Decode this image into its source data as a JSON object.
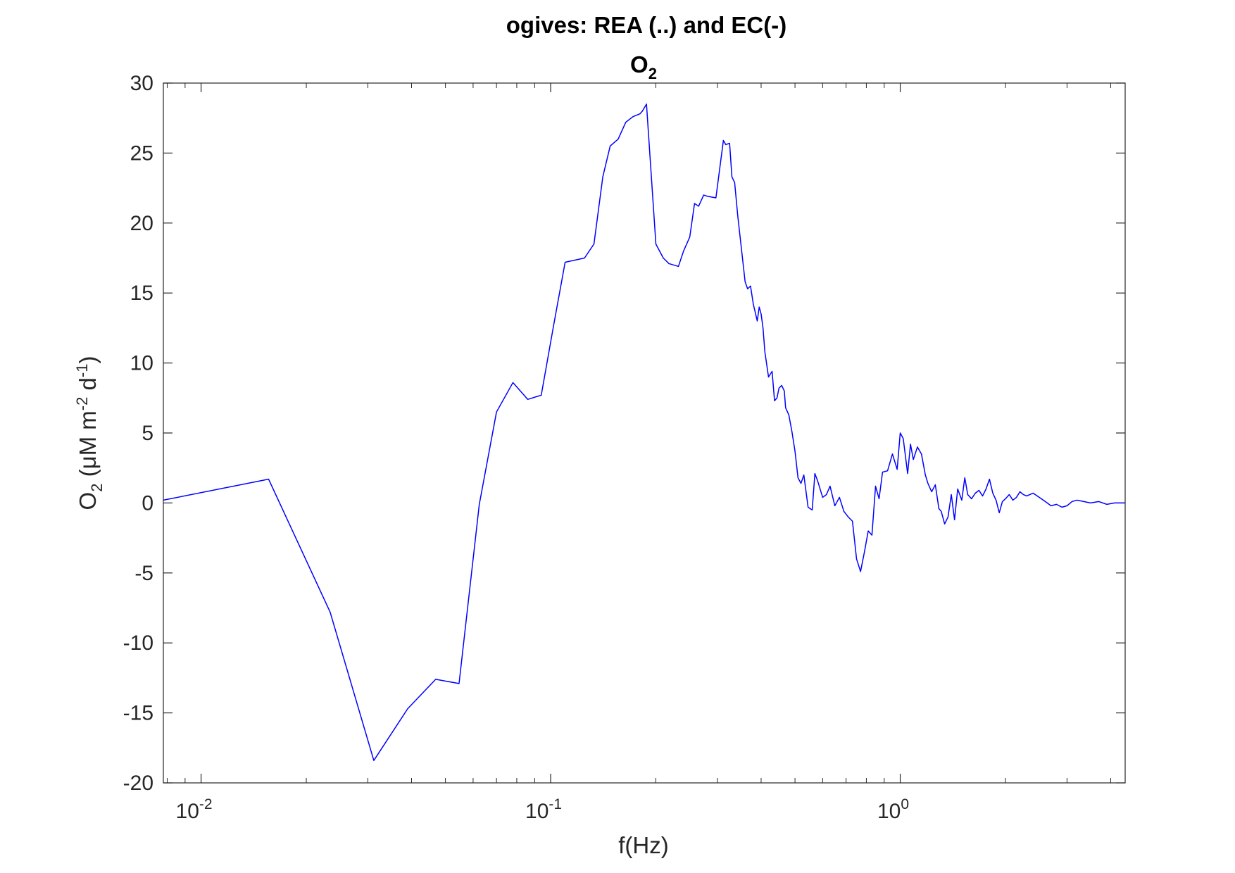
{
  "chart_data": {
    "type": "line",
    "title": "ogives: REA (..) and EC(-)",
    "subtitle": {
      "base": "O",
      "sub": "2"
    },
    "xlabel": "f(Hz)",
    "ylabel": {
      "base": "O",
      "base_sub": "2",
      "text1": " (μM m",
      "sup1": "-2",
      "text2": " d",
      "sup2": "-1",
      "text3": ")"
    },
    "xscale": "log",
    "xlim": [
      0.0078,
      4.4
    ],
    "ylim": [
      -20,
      30
    ],
    "xticks": [
      {
        "value": 0.01,
        "base": "10",
        "exp": "-2"
      },
      {
        "value": 0.1,
        "base": "10",
        "exp": "-1"
      },
      {
        "value": 1,
        "base": "10",
        "exp": "0"
      }
    ],
    "yticks": [
      {
        "value": 30,
        "label": "30"
      },
      {
        "value": 25,
        "label": "25"
      },
      {
        "value": 20,
        "label": "20"
      },
      {
        "value": 15,
        "label": "15"
      },
      {
        "value": 10,
        "label": "10"
      },
      {
        "value": 5,
        "label": "5"
      },
      {
        "value": 0,
        "label": "0"
      },
      {
        "value": -5,
        "label": "-5"
      },
      {
        "value": -10,
        "label": "-10"
      },
      {
        "value": -15,
        "label": "-15"
      },
      {
        "value": -20,
        "label": "-20"
      }
    ],
    "grid": false,
    "line_color": "#0000ff",
    "series": [
      {
        "x": [
          0.0078,
          0.0156,
          0.0234,
          0.0312,
          0.039,
          0.0469,
          0.0547,
          0.0625,
          0.07,
          0.078,
          0.086,
          0.094,
          0.102,
          0.11,
          0.125,
          0.133,
          0.141,
          0.148,
          0.156,
          0.164,
          0.172,
          0.18,
          0.183,
          0.188,
          0.2,
          0.21,
          0.218,
          0.232,
          0.24,
          0.25,
          0.258,
          0.265,
          0.274,
          0.282,
          0.297,
          0.312,
          0.317,
          0.325,
          0.33,
          0.336,
          0.343,
          0.36,
          0.366,
          0.373,
          0.38,
          0.39,
          0.395,
          0.4,
          0.405,
          0.41,
          0.42,
          0.43,
          0.437,
          0.444,
          0.45,
          0.458,
          0.466,
          0.47,
          0.48,
          0.49,
          0.5,
          0.51,
          0.52,
          0.53,
          0.545,
          0.56,
          0.57,
          0.58,
          0.6,
          0.615,
          0.63,
          0.65,
          0.67,
          0.69,
          0.71,
          0.73,
          0.75,
          0.77,
          0.79,
          0.81,
          0.83,
          0.85,
          0.87,
          0.89,
          0.92,
          0.95,
          0.98,
          1.0,
          1.02,
          1.05,
          1.07,
          1.09,
          1.12,
          1.15,
          1.18,
          1.2,
          1.23,
          1.26,
          1.29,
          1.31,
          1.34,
          1.37,
          1.4,
          1.43,
          1.46,
          1.5,
          1.53,
          1.56,
          1.6,
          1.64,
          1.68,
          1.72,
          1.76,
          1.8,
          1.84,
          1.88,
          1.92,
          1.96,
          2.0,
          2.05,
          2.1,
          2.15,
          2.2,
          2.25,
          2.3,
          2.4,
          2.5,
          2.6,
          2.7,
          2.8,
          2.9,
          3.0,
          3.1,
          3.2,
          3.35,
          3.5,
          3.7,
          3.9,
          4.1,
          4.4
        ],
        "y": [
          0.2,
          1.7,
          -7.8,
          -18.4,
          -14.7,
          -12.6,
          -12.9,
          -0.1,
          6.5,
          8.6,
          7.4,
          7.7,
          12.7,
          17.2,
          17.5,
          18.5,
          23.3,
          25.5,
          26.0,
          27.2,
          27.6,
          27.8,
          28.0,
          28.5,
          18.5,
          17.5,
          17.1,
          16.9,
          18.0,
          19.0,
          21.4,
          21.2,
          22.0,
          21.9,
          21.8,
          25.9,
          25.6,
          25.7,
          23.3,
          22.9,
          20.5,
          15.8,
          15.3,
          15.5,
          14.2,
          13.0,
          14.0,
          13.5,
          12.5,
          10.8,
          9.0,
          9.4,
          7.3,
          7.5,
          8.2,
          8.4,
          8.0,
          6.8,
          6.3,
          5.1,
          3.7,
          1.8,
          1.4,
          2.0,
          -0.3,
          -0.5,
          2.1,
          1.6,
          0.4,
          0.6,
          1.2,
          -0.2,
          0.4,
          -0.6,
          -1.0,
          -1.3,
          -4.0,
          -4.9,
          -3.5,
          -2.0,
          -2.3,
          1.2,
          0.3,
          2.2,
          2.3,
          3.5,
          2.4,
          5.0,
          4.6,
          2.1,
          4.2,
          3.1,
          4.0,
          3.5,
          2.0,
          1.4,
          0.8,
          1.3,
          -0.4,
          -0.6,
          -1.5,
          -1.0,
          0.6,
          -1.2,
          1.0,
          0.2,
          1.8,
          0.6,
          0.3,
          0.7,
          0.9,
          0.5,
          1.0,
          1.7,
          0.7,
          0.2,
          -0.7,
          0.1,
          0.3,
          0.6,
          0.2,
          0.4,
          0.8,
          0.6,
          0.5,
          0.7,
          0.4,
          0.1,
          -0.2,
          -0.1,
          -0.3,
          -0.2,
          0.1,
          0.2,
          0.1,
          0.0,
          0.1,
          -0.1,
          0.0,
          0.0
        ]
      }
    ]
  }
}
